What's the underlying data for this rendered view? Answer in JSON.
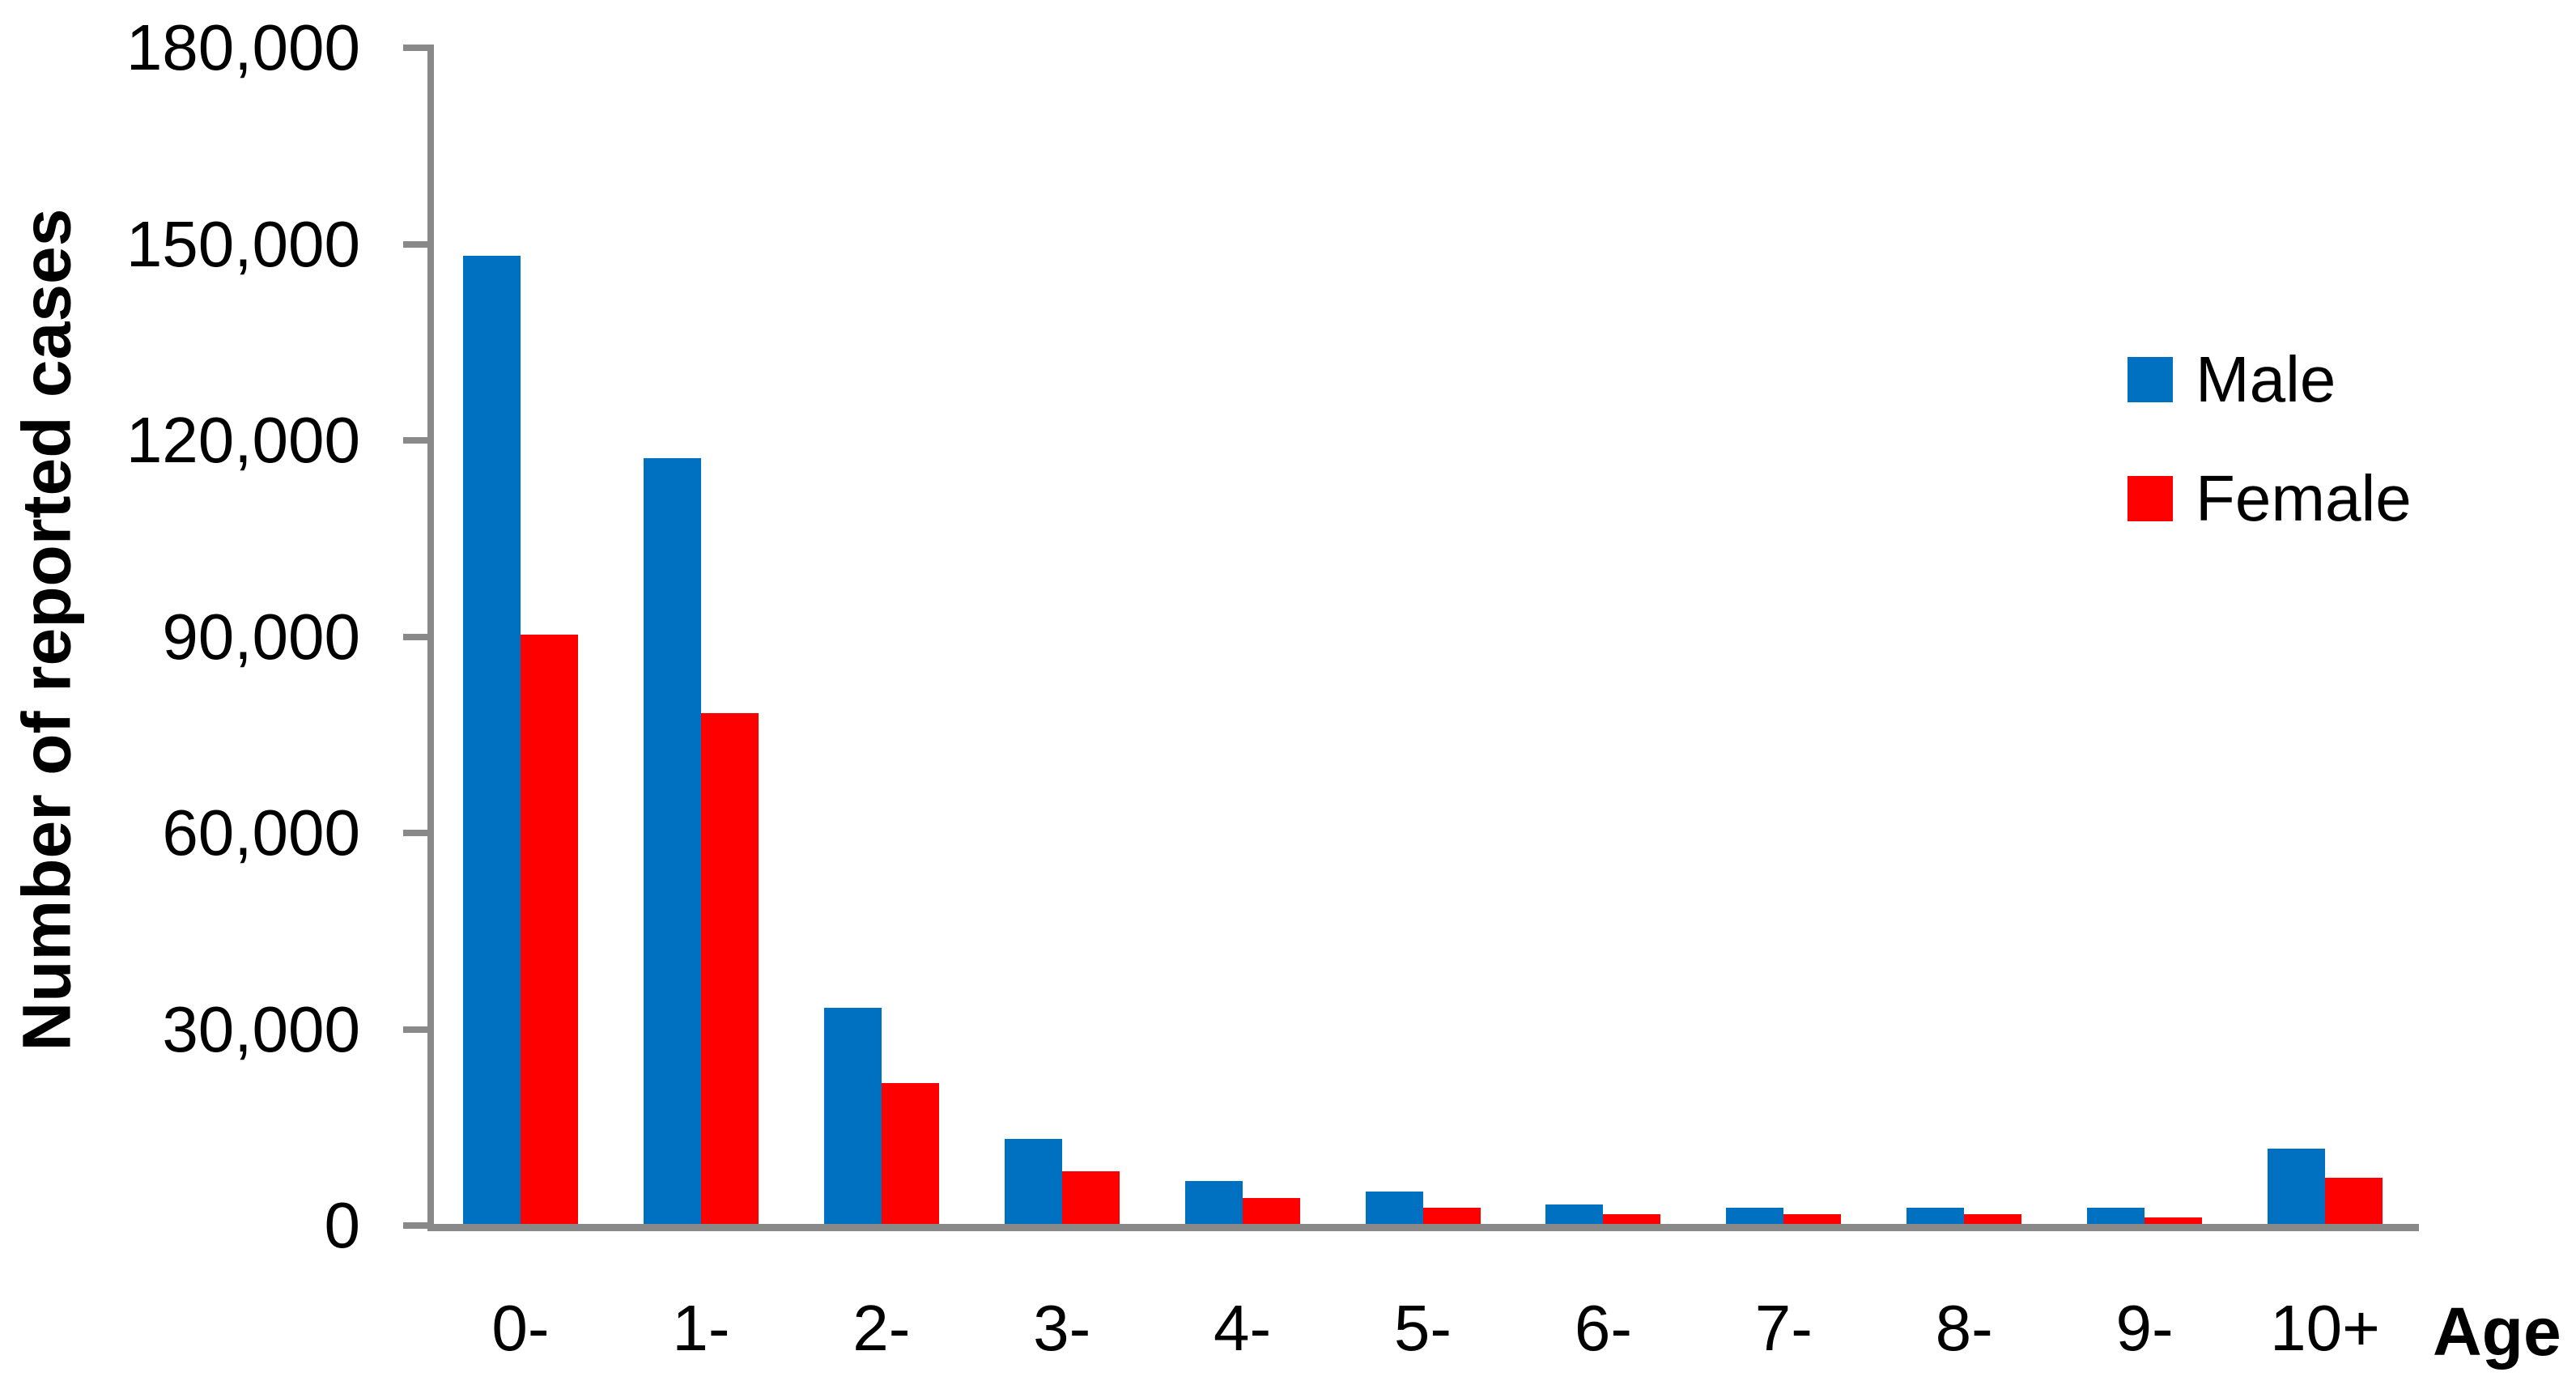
{
  "chart_data": {
    "type": "bar",
    "title": "",
    "xlabel": "Age",
    "ylabel": "Number of reported cases",
    "categories": [
      "0-",
      "1-",
      "2-",
      "3-",
      "4-",
      "5-",
      "6-",
      "7-",
      "8-",
      "9-",
      "10+"
    ],
    "series": [
      {
        "name": "Male",
        "color": "#0070C0",
        "values": [
          148000,
          117000,
          33000,
          13000,
          6500,
          5000,
          3000,
          2500,
          2500,
          2500,
          11500
        ]
      },
      {
        "name": "Female",
        "color": "#FF0000",
        "values": [
          90000,
          78000,
          21500,
          8000,
          4000,
          2500,
          1500,
          1500,
          1500,
          1000,
          7000
        ]
      }
    ],
    "ylim": [
      0,
      180000
    ],
    "y_tick_interval": 30000,
    "y_tick_labels": [
      "180,000",
      "150,000",
      "120,000",
      "90,000",
      "60,000",
      "30,000",
      "0"
    ],
    "y_tick_values": [
      180000,
      150000,
      120000,
      90000,
      60000,
      30000,
      0
    ],
    "grid": "off",
    "legend_position": "right",
    "axis_color": "#898989",
    "text_color": "#000000",
    "background_color": "#FFFFFF"
  },
  "legend": {
    "male_label": "Male",
    "female_label": "Female"
  },
  "axes": {
    "y_title": "Number of reported cases",
    "x_title": "Age"
  }
}
